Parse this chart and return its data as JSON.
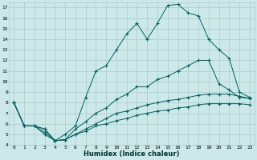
{
  "title": "",
  "xlabel": "Humidex (Indice chaleur)",
  "bg_color": "#cde8e8",
  "grid_color": "#aacccc",
  "line_color": "#006060",
  "xlim": [
    -0.5,
    23.5
  ],
  "ylim": [
    4,
    17.5
  ],
  "xticks": [
    0,
    1,
    2,
    3,
    4,
    5,
    6,
    7,
    8,
    9,
    10,
    11,
    12,
    13,
    14,
    15,
    16,
    17,
    18,
    19,
    20,
    21,
    22,
    23
  ],
  "yticks": [
    4,
    5,
    6,
    7,
    8,
    9,
    10,
    11,
    12,
    13,
    14,
    15,
    16,
    17
  ],
  "series": [
    {
      "x": [
        0,
        1,
        2,
        3,
        4,
        5,
        6,
        7,
        8,
        9,
        10,
        11,
        12,
        13,
        14,
        15,
        16,
        17,
        18,
        19,
        20,
        21,
        22,
        23
      ],
      "y": [
        8,
        5.8,
        5.8,
        5.5,
        4.4,
        5.0,
        5.8,
        8.5,
        11.0,
        11.5,
        13.0,
        14.5,
        15.5,
        14.0,
        15.5,
        17.2,
        17.3,
        16.5,
        16.2,
        14.0,
        13.0,
        12.2,
        9.0,
        8.5
      ]
    },
    {
      "x": [
        0,
        1,
        2,
        3,
        4,
        5,
        6,
        7,
        8,
        9,
        10,
        11,
        12,
        13,
        14,
        15,
        16,
        17,
        18,
        19,
        20,
        21,
        22,
        23
      ],
      "y": [
        8,
        5.8,
        5.8,
        5.5,
        4.4,
        4.5,
        5.5,
        6.2,
        7.0,
        7.5,
        8.3,
        8.8,
        9.5,
        9.5,
        10.2,
        10.5,
        11.0,
        11.5,
        12.0,
        12.0,
        9.8,
        9.2,
        8.5,
        8.4
      ]
    },
    {
      "x": [
        0,
        1,
        2,
        3,
        4,
        5,
        6,
        7,
        8,
        9,
        10,
        11,
        12,
        13,
        14,
        15,
        16,
        17,
        18,
        19,
        20,
        21,
        22,
        23
      ],
      "y": [
        8,
        5.8,
        5.8,
        5.2,
        4.4,
        4.5,
        5.0,
        5.5,
        6.0,
        6.5,
        7.0,
        7.2,
        7.5,
        7.8,
        8.0,
        8.2,
        8.3,
        8.5,
        8.7,
        8.8,
        8.8,
        8.8,
        8.6,
        8.4
      ]
    },
    {
      "x": [
        0,
        1,
        2,
        3,
        4,
        5,
        6,
        7,
        8,
        9,
        10,
        11,
        12,
        13,
        14,
        15,
        16,
        17,
        18,
        19,
        20,
        21,
        22,
        23
      ],
      "y": [
        8,
        5.8,
        5.8,
        5.0,
        4.4,
        4.5,
        5.0,
        5.3,
        5.8,
        6.0,
        6.3,
        6.5,
        6.8,
        7.0,
        7.2,
        7.3,
        7.5,
        7.6,
        7.8,
        7.9,
        7.9,
        7.9,
        7.9,
        7.8
      ]
    }
  ]
}
